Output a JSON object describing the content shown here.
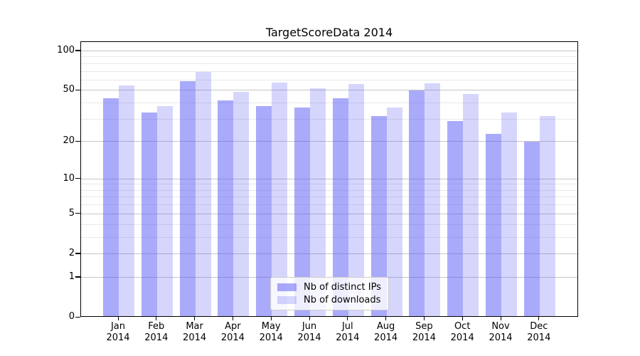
{
  "chart_data": {
    "type": "bar",
    "title": "TargetScoreData 2014",
    "categories": [
      "Jan\n2014",
      "Feb\n2014",
      "Mar\n2014",
      "Apr\n2014",
      "May\n2014",
      "Jun\n2014",
      "Jul\n2014",
      "Aug\n2014",
      "Sep\n2014",
      "Oct\n2014",
      "Nov\n2014",
      "Dec\n2014"
    ],
    "series": [
      {
        "name": "Nb of distinct IPs",
        "fill": "rgba(85,85,248,0.5)",
        "values": [
          44,
          34,
          59,
          42,
          38,
          37,
          44,
          32,
          50,
          29,
          23,
          20
        ]
      },
      {
        "name": "Nb of downloads",
        "fill": "rgba(85,85,248,0.24)",
        "values": [
          55,
          38,
          70,
          49,
          58,
          52,
          56,
          37,
          57,
          47,
          34,
          32
        ]
      }
    ],
    "yscale": "log1p",
    "ylim": [
      0,
      117
    ],
    "yticks": [
      0,
      1,
      2,
      5,
      10,
      20,
      50,
      100
    ],
    "minor_yticks": [
      3,
      4,
      6,
      7,
      8,
      9,
      30,
      40,
      60,
      70,
      80,
      90
    ],
    "grid": true,
    "legend_position": "lower-center",
    "colors": {
      "bar_base": "#5555f8",
      "distinct_ips_onwhite": "#aaaafa",
      "downloads_onwhite": "#d8d8fb",
      "major_grid": "#c6c6c6",
      "minor_grid": "#e9e9e9",
      "axis": "#000000"
    }
  }
}
